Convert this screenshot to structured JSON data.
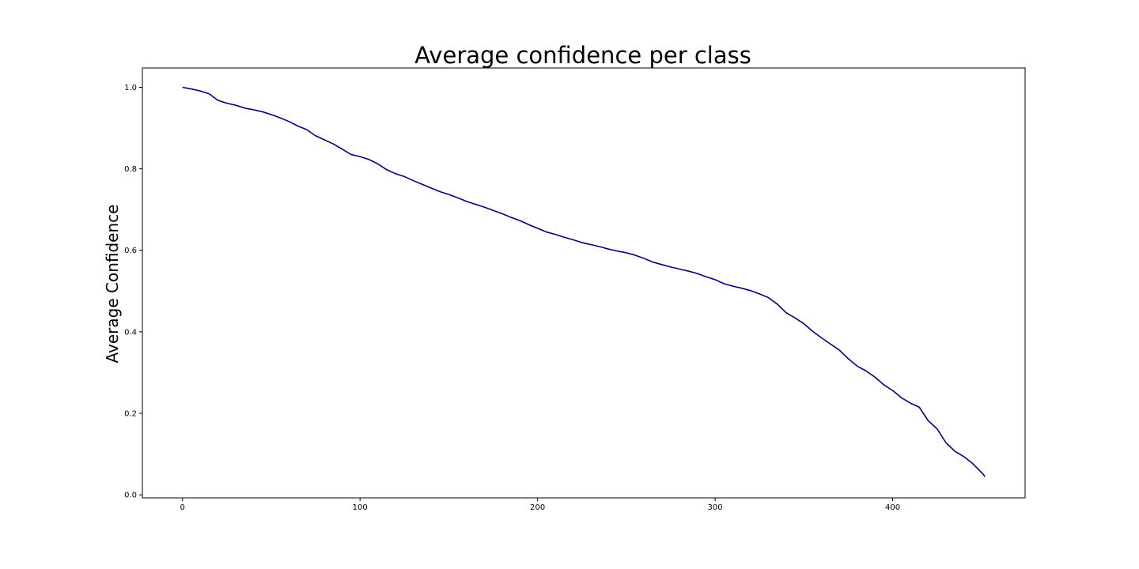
{
  "chart_data": {
    "type": "line",
    "title": "Average confidence per class",
    "xlabel": "",
    "ylabel": "Average Confidence",
    "xlim": [
      -22.6,
      474.6
    ],
    "ylim": [
      -0.0075,
      1.0475
    ],
    "xticks": [
      0,
      100,
      200,
      300,
      400
    ],
    "yticks": [
      0.0,
      0.2,
      0.4,
      0.6,
      0.8,
      1.0
    ],
    "xtick_labels": [
      "0",
      "100",
      "200",
      "300",
      "400"
    ],
    "ytick_labels": [
      "0.0",
      "0.2",
      "0.4",
      "0.6",
      "0.8",
      "1.0"
    ],
    "grid": false,
    "line_color": "#00007f",
    "series": [
      {
        "x": [
          0,
          5,
          10,
          15,
          20,
          25,
          30,
          35,
          40,
          45,
          50,
          55,
          60,
          65,
          70,
          75,
          80,
          85,
          90,
          95,
          100,
          105,
          110,
          115,
          120,
          125,
          130,
          135,
          140,
          145,
          150,
          155,
          160,
          165,
          170,
          175,
          180,
          185,
          190,
          195,
          200,
          205,
          210,
          215,
          220,
          225,
          230,
          235,
          240,
          245,
          250,
          255,
          260,
          265,
          270,
          275,
          280,
          285,
          290,
          295,
          300,
          305,
          310,
          315,
          320,
          325,
          330,
          335,
          340,
          345,
          350,
          355,
          360,
          365,
          370,
          375,
          380,
          385,
          390,
          395,
          400,
          405,
          410,
          415,
          420,
          425,
          430,
          435,
          440,
          445,
          450,
          452
        ],
        "values": [
          1.0,
          0.996,
          0.991,
          0.984,
          0.968,
          0.961,
          0.956,
          0.949,
          0.945,
          0.94,
          0.933,
          0.925,
          0.916,
          0.905,
          0.896,
          0.881,
          0.871,
          0.861,
          0.848,
          0.835,
          0.83,
          0.823,
          0.812,
          0.798,
          0.788,
          0.781,
          0.771,
          0.762,
          0.753,
          0.744,
          0.737,
          0.729,
          0.72,
          0.713,
          0.706,
          0.698,
          0.69,
          0.681,
          0.673,
          0.663,
          0.654,
          0.645,
          0.639,
          0.632,
          0.626,
          0.619,
          0.614,
          0.609,
          0.603,
          0.598,
          0.594,
          0.588,
          0.58,
          0.571,
          0.565,
          0.559,
          0.554,
          0.549,
          0.543,
          0.535,
          0.528,
          0.518,
          0.512,
          0.507,
          0.501,
          0.493,
          0.484,
          0.468,
          0.447,
          0.434,
          0.42,
          0.401,
          0.385,
          0.37,
          0.355,
          0.334,
          0.316,
          0.304,
          0.289,
          0.27,
          0.256,
          0.238,
          0.225,
          0.215,
          0.182,
          0.162,
          0.128,
          0.107,
          0.094,
          0.077,
          0.055,
          0.045
        ]
      }
    ]
  }
}
